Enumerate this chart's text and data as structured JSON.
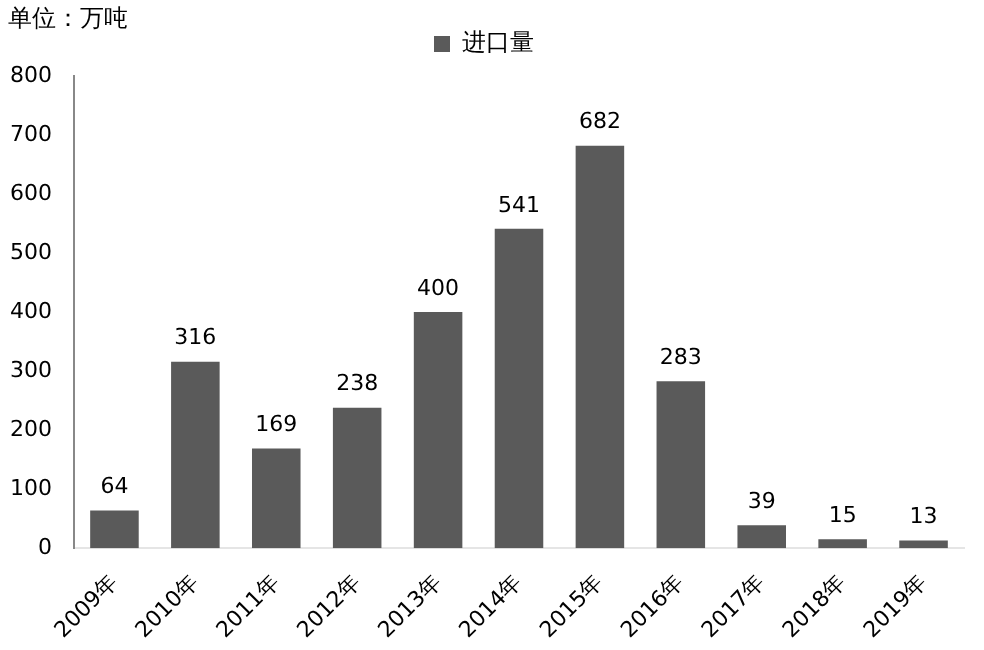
{
  "chart_data": {
    "type": "bar",
    "ylabel": "单位：万吨",
    "categories": [
      "2009年",
      "2010年",
      "2011年",
      "2012年",
      "2013年",
      "2014年",
      "2015年",
      "2016年",
      "2017年",
      "2018年",
      "2019年"
    ],
    "series": [
      {
        "name": "进口量",
        "color": "#5a5a5a",
        "values": [
          64,
          316,
          169,
          238,
          400,
          541,
          682,
          283,
          39,
          15,
          13
        ]
      }
    ],
    "ylim": [
      0,
      800
    ],
    "yticks": [
      0,
      100,
      200,
      300,
      400,
      500,
      600,
      700,
      800
    ],
    "grid": false,
    "legend": "top",
    "data_labels": true
  }
}
